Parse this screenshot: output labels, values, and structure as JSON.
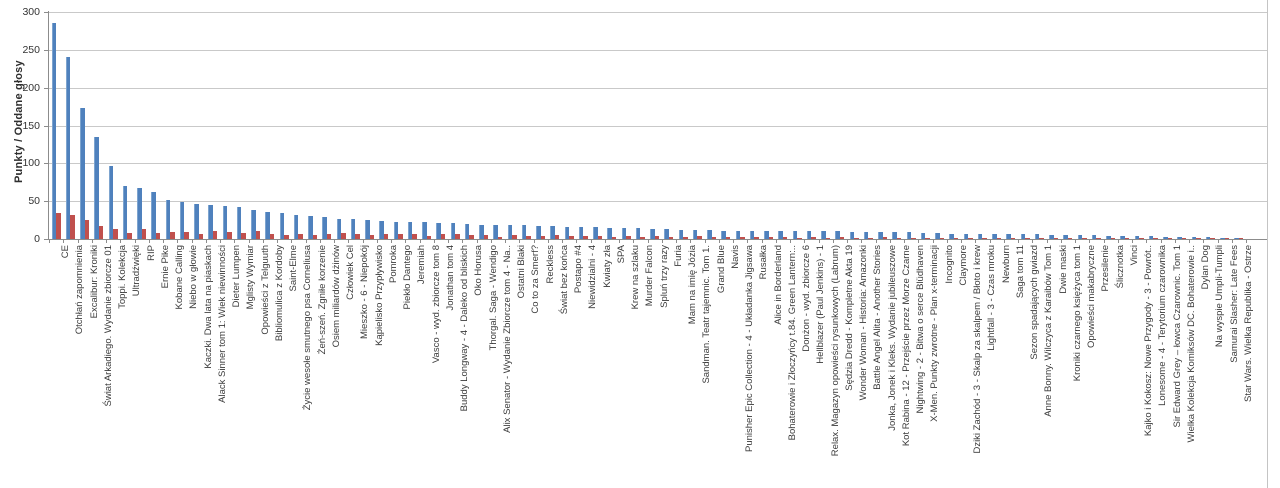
{
  "chart_data": {
    "type": "bar",
    "title": "",
    "ylabel": "Punkty /  Oddane głosy",
    "ylim": [
      0,
      300
    ],
    "yticks": [
      0,
      50,
      100,
      150,
      200,
      250,
      300
    ],
    "grid": true,
    "legend_position": "none",
    "bar_colors": {
      "punkty": "#4f81bd",
      "oddane_glosy": "#c0504d"
    },
    "categories": [
      "CE",
      "Otchłań zapomnienia",
      "Excalibur: Kroniki",
      "Świat Arkadiego. Wydanie zbiorcze 01",
      "Toppi. Kolekcja",
      "Ultradźwięki",
      "RIP",
      "Ernie Pike",
      "Kobane Calling",
      "Niebo w głowie",
      "Kaczki. Dwa lata na piaskach",
      "Alack Sinner tom 1: Wiek niewinności",
      "Dieter Lumpen",
      "Mglisty Wymiar",
      "Opowieści z Telguuth",
      "Bibliomulica z Kordoby",
      "Saint-Elme",
      "Życie wesołe smutnego psa Corneliusa",
      "Żeń-szeń. Zgniłe korzenie",
      "Osiem miliardów dżinów",
      "Człowiek Cel",
      "Mieszko - 6 - Niepokój",
      "Kąpielisko Przypływisko",
      "Pomroka",
      "Piekło Dantego",
      "Jeremiah",
      "Vasco - wyd. zbiorcze tom 8",
      "Jonathan tom 4",
      "Buddy Longway - 4 - Daleko od bliskich",
      "Oko Horusa",
      "Thorgal. Saga - Wendigo",
      "Alix Senator - Wydanie Zbiorcze tom 4 - Na..",
      "Ostatni Blaki",
      "Co to za Smerf?",
      "Reckless",
      "Świat bez końca",
      "Postapo #4",
      "Niewidzialni - 4",
      "Kwiaty zła",
      "SPA",
      "Krew na szlaku",
      "Murder Falcon",
      "Spluń trzy razy",
      "Furia",
      "Mam na imię Józia",
      "Sandman. Teatr tajemnic. Tom 1.",
      "Grand Blue",
      "Navis",
      "Punisher Epic Collection - 4 - Układanka Jigsawa",
      "Rusałka",
      "Alice in Borderland",
      "Bohaterowie i Złoczyńcy t.84. Green Lantern:..",
      "Donżon - wyd. zbiorcze 6",
      "Hellblazer (Paul Jenkins) - 1",
      "Relax. Magazyn opowieści rysunkowych (Labrum)",
      "Sędzia Dredd - Kompletne Akta 19",
      "Wonder Woman - Historia: Amazonki",
      "Battle Angel Alita - Another Stories",
      "Jonka, Jonek i Kleks. Wydanie jubileuszowe",
      "Kot Rabina - 12 - Przejście przez Morze Czarne",
      "Nightwing - 2 - Bitwa o serce Blüdhaven",
      "X-Men. Punkty zwrotne - Plan x-terminacji",
      "Incognito",
      "Claymore",
      "Dziki Zachód - 3 - Skalp za skalpem / Błoto i krew",
      "Lightfall - 3 - Czas mroku",
      "Newburn",
      "Saga tom 11",
      "Sezon spadających gwiazd",
      "Anne Bonny. Wilczyca z Karaibów Tom 1",
      "Dwie maski",
      "Kroniki czarnego księżyca tom 1",
      "Opowieści makabryczne",
      "Przesilenie",
      "Ślicznotka",
      "Vinci",
      "Kajko i Kokosz: Nowe Przygody - 3 - Powrót..",
      "Lonesome - 4 - Terytorium czarownika",
      "Sir Edward Grey – łowca Czarownic. Tom 1",
      "Wielka Kolekcja Komiksów DC. Bohaterowie i..",
      "Dylan Dog",
      "Na wyspie Umpli-Tumpli",
      "Samurai Slasher: Late Fees",
      "Star Wars. Wielka Republika - Ostrze"
    ],
    "series": [
      {
        "name": "Punkty",
        "color": "#4f81bd",
        "values": [
          285,
          240,
          173,
          135,
          97,
          70,
          67,
          62,
          52,
          49,
          46,
          45,
          44,
          42,
          38,
          36,
          34,
          32,
          31,
          29,
          27,
          26,
          25,
          24,
          23,
          23,
          22,
          21,
          21,
          20,
          19,
          19,
          18,
          18,
          17,
          17,
          16,
          16,
          16,
          15,
          15,
          15,
          13,
          13,
          12,
          12,
          12,
          11,
          11,
          11,
          11,
          10,
          10,
          10,
          10,
          10,
          9,
          9,
          9,
          9,
          9,
          8,
          8,
          7,
          7,
          7,
          6,
          6,
          6,
          6,
          5,
          5,
          5,
          5,
          4,
          4,
          4,
          4,
          3,
          3,
          3,
          3,
          2,
          2
        ]
      },
      {
        "name": "Oddane głosy",
        "color": "#c0504d",
        "values": [
          34,
          32,
          25,
          17,
          13,
          8,
          13,
          8,
          9,
          9,
          7,
          10,
          9,
          8,
          10,
          6,
          5,
          6,
          5,
          6,
          8,
          7,
          5,
          7,
          6,
          7,
          4,
          6,
          6,
          5,
          5,
          3,
          5,
          4,
          4,
          5,
          4,
          4,
          4,
          3,
          4,
          3,
          4,
          3,
          3,
          4,
          3,
          3,
          3,
          3,
          3,
          3,
          2,
          3,
          2,
          3,
          2,
          2,
          3,
          2,
          2,
          2,
          2,
          2,
          2,
          2,
          2,
          2,
          1,
          2,
          1,
          2,
          1,
          1,
          1,
          1,
          1,
          1,
          1,
          1,
          1,
          1,
          1,
          1
        ]
      }
    ]
  }
}
